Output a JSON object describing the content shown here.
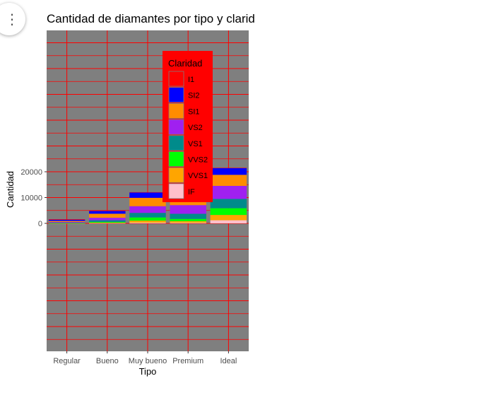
{
  "menu": {
    "icon": "more-vert-icon",
    "glyph": "⋮"
  },
  "chart_data": {
    "type": "bar",
    "stacked": true,
    "title": "Cantidad de diamantes por tipo y clarid",
    "xlabel": "Tipo",
    "ylabel": "Cantidad",
    "categories": [
      "Regular",
      "Bueno",
      "Muy bueno",
      "Premium",
      "Ideal"
    ],
    "ylim": [
      -100000,
      150000
    ],
    "yticks": [
      0,
      10000,
      20000
    ],
    "series": [
      {
        "name": "I1",
        "color": "#ff0000",
        "values": [
          210,
          96,
          84,
          205,
          146
        ]
      },
      {
        "name": "SI2",
        "color": "#0000ff",
        "values": [
          466,
          1081,
          2100,
          2949,
          2598
        ]
      },
      {
        "name": "SI1",
        "color": "#ff8c00",
        "values": [
          408,
          1560,
          3240,
          3575,
          4282
        ]
      },
      {
        "name": "VS2",
        "color": "#a020f0",
        "values": [
          261,
          978,
          2591,
          3357,
          5071
        ]
      },
      {
        "name": "VS1",
        "color": "#008b8b",
        "values": [
          170,
          648,
          1775,
          1989,
          3589
        ]
      },
      {
        "name": "VVS2",
        "color": "#00ff00",
        "values": [
          69,
          286,
          1235,
          870,
          2606
        ]
      },
      {
        "name": "VVS1",
        "color": "#ffa500",
        "values": [
          17,
          186,
          789,
          616,
          2047
        ]
      },
      {
        "name": "IF",
        "color": "#ffc0cb",
        "values": [
          9,
          71,
          268,
          230,
          1212
        ]
      }
    ],
    "panel_background": "#7f7f7f",
    "gridline_color": "#ff0000",
    "legend": {
      "title": "Claridad",
      "background": "#ff0000",
      "placement": "inside-top-center"
    }
  }
}
